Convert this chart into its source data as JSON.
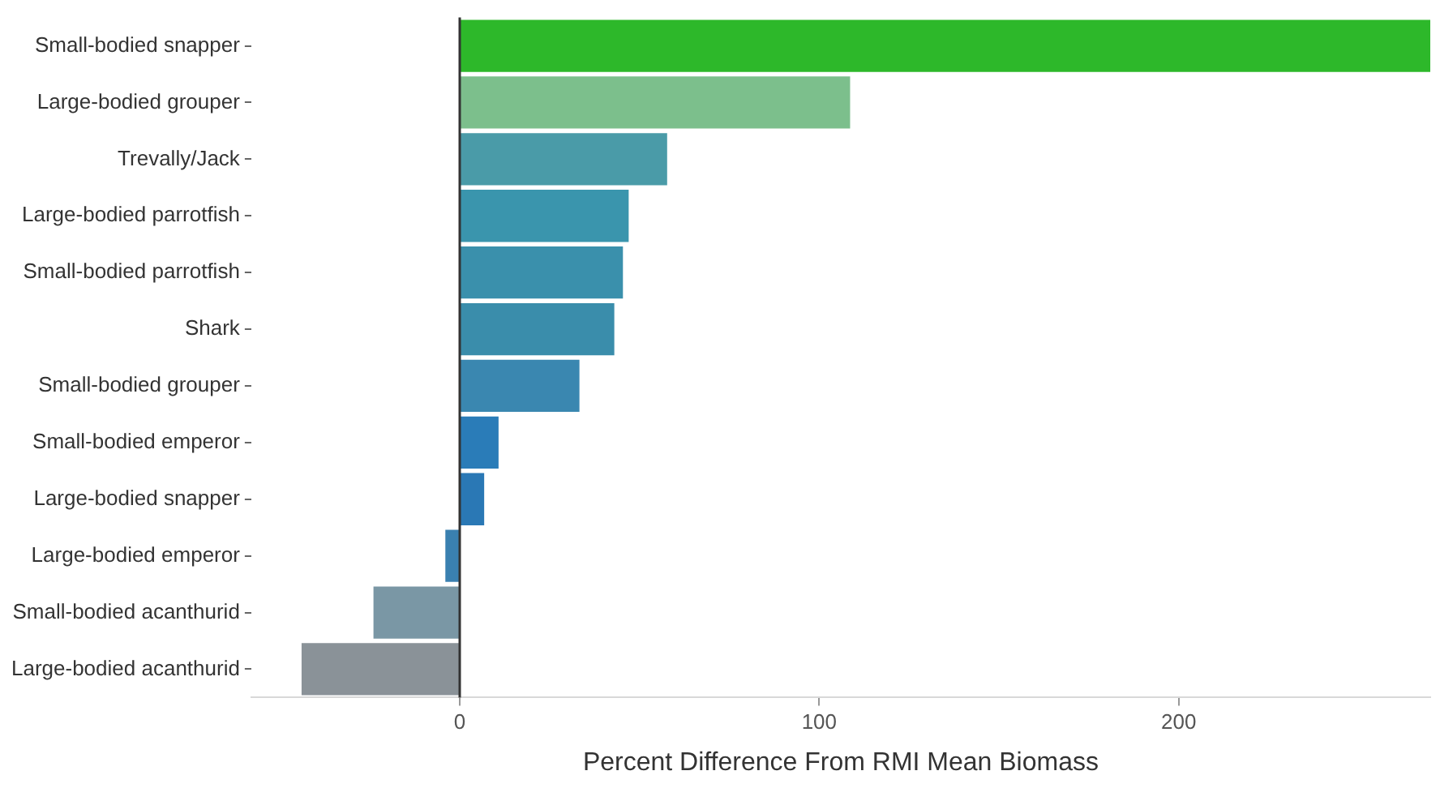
{
  "chart_data": {
    "type": "bar",
    "orientation": "horizontal",
    "xlabel": "Percent Difference From RMI Mean Biomass",
    "categories": [
      "Small-bodied snapper",
      "Large-bodied grouper",
      "Trevally/Jack",
      "Large-bodied parrotfish",
      "Small-bodied parrotfish",
      "Shark",
      "Small-bodied grouper",
      "Small-bodied emperor",
      "Large-bodied snapper",
      "Large-bodied emperor",
      "Small-bodied acanthurid",
      "Large-bodied acanthurid"
    ],
    "values": [
      270,
      108.6,
      57.7,
      47,
      45.4,
      43,
      33.3,
      10.8,
      6.8,
      -4,
      -24,
      -44
    ],
    "colors": [
      "#2db82a",
      "#7cbf8c",
      "#4a9ba8",
      "#3a95ad",
      "#3a90ac",
      "#3a8dab",
      "#3a87b0",
      "#2a7cb8",
      "#2a78b5",
      "#3a80b0",
      "#7a97a5",
      "#8a9298"
    ],
    "xlim": [
      -58,
      270
    ],
    "xticks": [
      0,
      100,
      200
    ],
    "ref_lines": [
      {
        "axis": "x",
        "value": 0,
        "color": "#333333"
      }
    ],
    "grid": false,
    "legend": false
  }
}
